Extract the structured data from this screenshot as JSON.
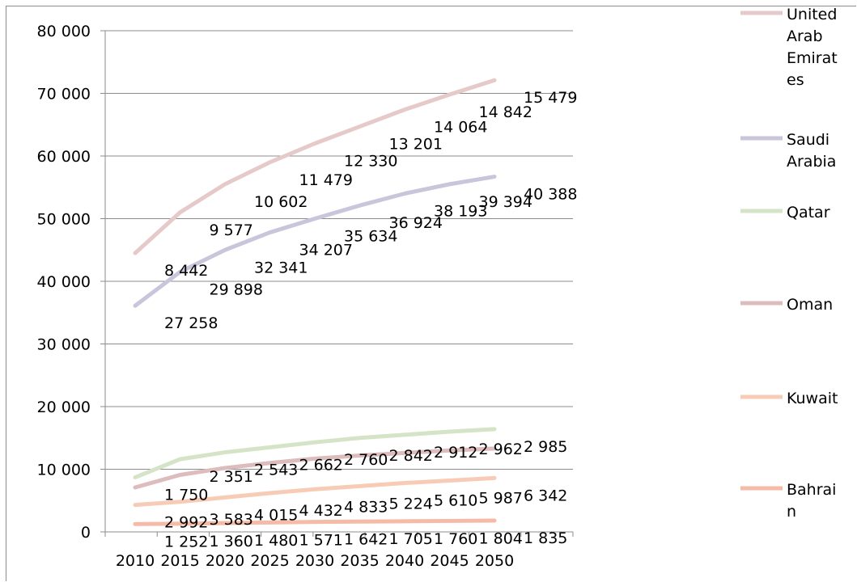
{
  "chart_data": {
    "type": "line",
    "title": "",
    "xlabel": "",
    "ylabel": "",
    "categories": [
      "2010",
      "2015",
      "2020",
      "2025",
      "2030",
      "2035",
      "2040",
      "2045",
      "2050"
    ],
    "y_ticks": [
      "0",
      "10 000",
      "20 000",
      "30 000",
      "40 000",
      "50 000",
      "60 000",
      "70 000",
      "80 000"
    ],
    "ylim": [
      0,
      80000
    ],
    "grid": true,
    "legend_position": "right",
    "series": [
      {
        "name": "United Arab Emirates",
        "legend_lines": [
          "United",
          "Arab",
          "Emirat",
          "es"
        ],
        "color": "#e6c9c9",
        "values": [
          44500,
          51000,
          55500,
          59000,
          62000,
          64700,
          67400,
          69800,
          72100
        ],
        "labels": [
          "8 442",
          "9 577",
          "10 602",
          "11 479",
          "12 330",
          "13 201",
          "14 064",
          "14 842",
          "15 479"
        ]
      },
      {
        "name": "Saudi Arabia",
        "legend_lines": [
          "Saudi",
          "Arabia"
        ],
        "color": "#cbc5db",
        "values": [
          36100,
          41500,
          45000,
          47800,
          50000,
          52100,
          54000,
          55500,
          56700
        ],
        "labels": [
          "27 258",
          "29 898",
          "32 341",
          "34 207",
          "35 634",
          "36 924",
          "38 193",
          "39 394",
          "40 388"
        ]
      },
      {
        "name": "Qatar",
        "legend_lines": [
          "Qatar"
        ],
        "color": "#d5e3c7",
        "values": [
          8700,
          11600,
          12700,
          13500,
          14300,
          15000,
          15500,
          16000,
          16400
        ],
        "labels": [
          "1 750",
          "2 351",
          "2 543",
          "2 662",
          "2 760",
          "2 842",
          "2 912",
          "2 962",
          "2 985"
        ]
      },
      {
        "name": "Oman",
        "legend_lines": [
          "Oman"
        ],
        "color": "#dcbcbc",
        "values": [
          7100,
          9100,
          10200,
          11000,
          11700,
          12200,
          12600,
          13000,
          13300
        ],
        "labels": [
          "",
          "",
          "",
          "",
          "",
          "",
          "",
          "",
          ""
        ]
      },
      {
        "name": "Kuwait",
        "legend_lines": [
          "Kuwait"
        ],
        "color": "#f8cbb6",
        "values": [
          4300,
          4800,
          5500,
          6200,
          6800,
          7300,
          7800,
          8200,
          8600
        ],
        "labels": [
          "2 992",
          "3 583",
          "4 015",
          "4 432",
          "4 833",
          "5 224",
          "5 610",
          "5 987",
          "6 342"
        ]
      },
      {
        "name": "Bahrain",
        "legend_lines": [
          "Bahrai",
          "n"
        ],
        "color": "#f5bba6",
        "values": [
          1250,
          1300,
          1400,
          1500,
          1600,
          1650,
          1700,
          1750,
          1800
        ],
        "labels": [
          "1 252",
          "1 360",
          "1 480",
          "1 571",
          "1 642",
          "1 705",
          "1 760",
          "1 804",
          "1 835"
        ]
      }
    ]
  }
}
